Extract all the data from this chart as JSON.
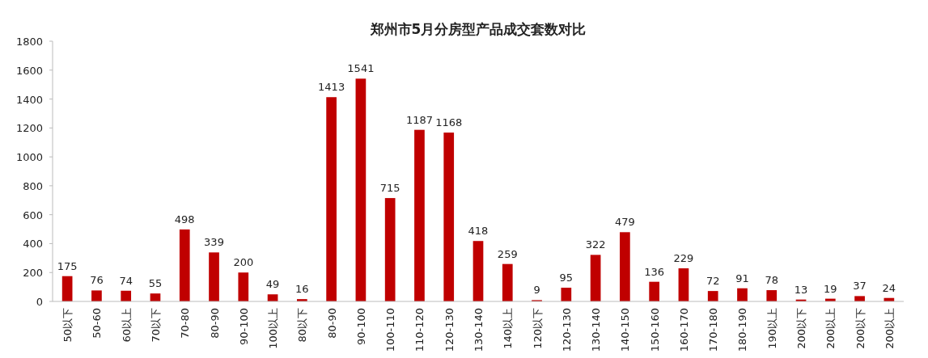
{
  "chart_data": {
    "type": "bar",
    "title": "郑州市5月分房型产品成交套数对比",
    "categories": [
      "50以下",
      "50-60",
      "60以上",
      "70以下",
      "70-80",
      "80-90",
      "90-100",
      "100以上",
      "80以下",
      "80-90",
      "90-100",
      "100-110",
      "110-120",
      "120-130",
      "130-140",
      "140以上",
      "120以下",
      "120-130",
      "130-140",
      "140-150",
      "150-160",
      "160-170",
      "170-180",
      "180-190",
      "190以上",
      "200以下",
      "200以上",
      "200以下",
      "200以上"
    ],
    "values": [
      175,
      76,
      74,
      55,
      498,
      339,
      200,
      49,
      16,
      1413,
      1541,
      715,
      1187,
      1168,
      418,
      259,
      9,
      95,
      322,
      479,
      136,
      229,
      72,
      91,
      78,
      13,
      19,
      37,
      24
    ],
    "color": "#c00000",
    "ylim": [
      0,
      1800
    ],
    "yticks": [
      0,
      200,
      400,
      600,
      800,
      1000,
      1200,
      1400,
      1600,
      1800
    ],
    "grid": false,
    "data_labels": true
  }
}
